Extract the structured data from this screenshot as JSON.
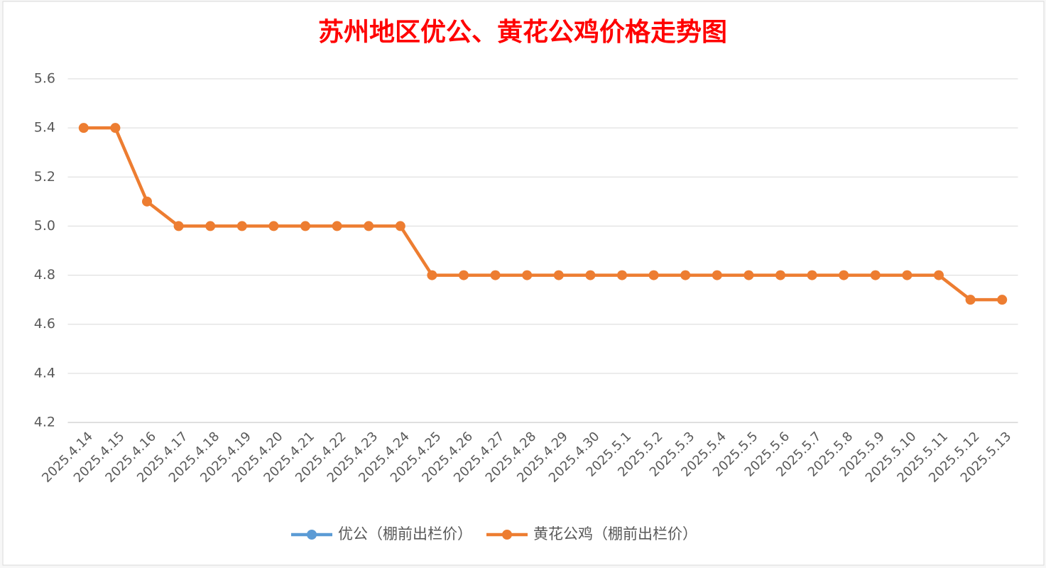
{
  "chart_data": {
    "type": "line",
    "title": "苏州地区优公、黄花公鸡价格走势图",
    "categories": [
      "2025.4.14",
      "2025.4.15",
      "2025.4.16",
      "2025.4.17",
      "2025.4.18",
      "2025.4.19",
      "2025.4.20",
      "2025.4.21",
      "2025.4.22",
      "2025.4.23",
      "2025.4.24",
      "2025.4.25",
      "2025.4.26",
      "2025.4.27",
      "2025.4.28",
      "2025.4.29",
      "2025.4.30",
      "2025.5.1",
      "2025.5.2",
      "2025.5.3",
      "2025.5.4",
      "2025.5.5",
      "2025.5.6",
      "2025.5.7",
      "2025.5.8",
      "2025.5.9",
      "2025.5.10",
      "2025.5.11",
      "2025.5.12",
      "2025.5.13"
    ],
    "series": [
      {
        "name": "优公（棚前出栏价）",
        "color": "#5b9bd5",
        "values": [
          null,
          null,
          null,
          null,
          null,
          null,
          null,
          null,
          null,
          null,
          null,
          null,
          null,
          null,
          null,
          null,
          null,
          null,
          null,
          null,
          null,
          null,
          null,
          null,
          null,
          null,
          null,
          null,
          null,
          null
        ]
      },
      {
        "name": "黄花公鸡（棚前出栏价）",
        "color": "#ed7d31",
        "values": [
          5.4,
          5.4,
          5.1,
          5.0,
          5.0,
          5.0,
          5.0,
          5.0,
          5.0,
          5.0,
          5.0,
          4.8,
          4.8,
          4.8,
          4.8,
          4.8,
          4.8,
          4.8,
          4.8,
          4.8,
          4.8,
          4.8,
          4.8,
          4.8,
          4.8,
          4.8,
          4.8,
          4.8,
          4.7,
          4.7
        ]
      }
    ],
    "ylim": [
      4.2,
      5.6
    ],
    "yticks": [
      4.2,
      4.4,
      4.6,
      4.8,
      {
        "value": 5,
        "label": "5.0"
      },
      5.2,
      5.4,
      5.6
    ],
    "grid": true,
    "legend": "bottom"
  }
}
